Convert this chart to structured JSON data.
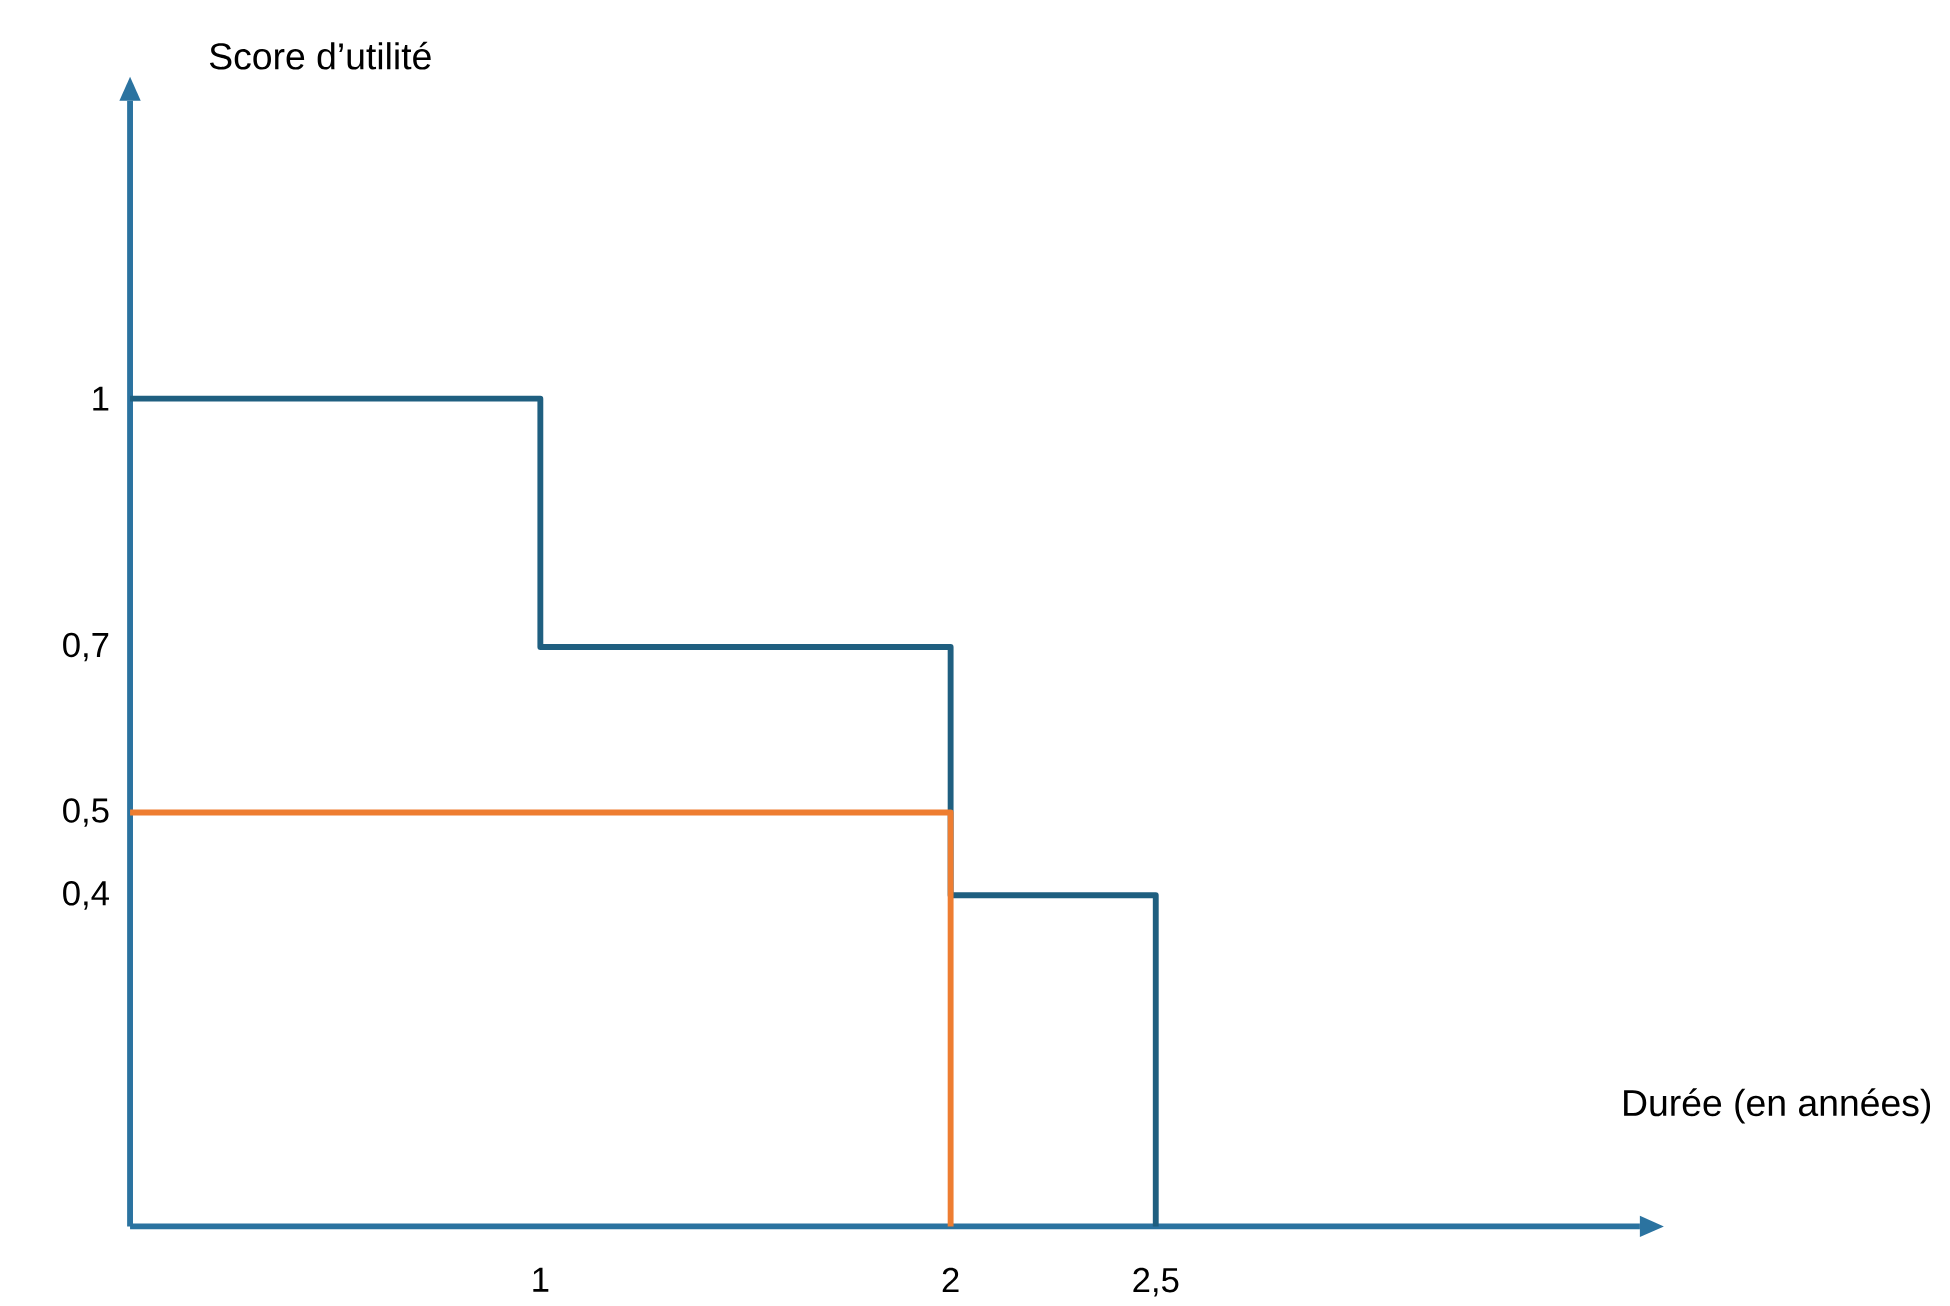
{
  "chart_data": {
    "type": "step",
    "xlabel": "Durée (en années)",
    "ylabel": "Score d’utilité",
    "series": [
      {
        "x": [
          0,
          1,
          2,
          2.5
        ],
        "values": [
          1,
          0.7,
          0.4,
          0
        ],
        "color": "#1f5f80"
      },
      {
        "x": [
          0,
          2
        ],
        "values": [
          0.5,
          0
        ],
        "color": "#ee7d31"
      }
    ],
    "xlim": [
      0,
      3.68
    ],
    "ylim": [
      0,
      1.36
    ],
    "xticks": [
      1,
      2,
      {
        "value": 2.5,
        "label": "2,5"
      }
    ],
    "yticks": [
      {
        "value": 0.4,
        "label": "0,4"
      },
      {
        "value": 0.5,
        "label": "0,5"
      },
      {
        "value": 0.7,
        "label": "0,7"
      },
      1
    ],
    "grid": false
  }
}
